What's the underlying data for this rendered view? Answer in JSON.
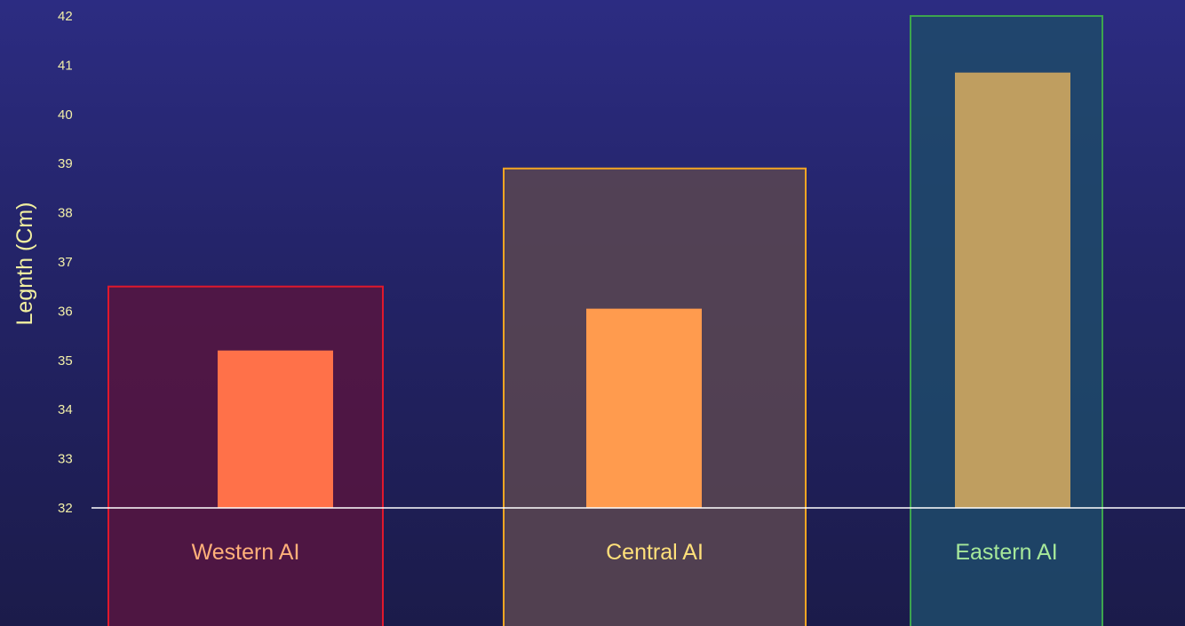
{
  "chart_data": {
    "type": "bar",
    "ylabel": "Legnth (Cm)",
    "ylim": [
      32,
      42
    ],
    "yticks": [
      32,
      33,
      34,
      35,
      36,
      37,
      38,
      39,
      40,
      41,
      42
    ],
    "categories": [
      "Western AI",
      "Central AI",
      "Eastern AI"
    ],
    "values": [
      35.2,
      36.05,
      40.85
    ],
    "range_box_tops": [
      36.5,
      38.9,
      42
    ],
    "colors": {
      "bars": [
        "#ff7149",
        "#ff9b4e",
        "#bf9e60"
      ],
      "box_fills": [
        "#571541",
        "#5b4651",
        "#1e4a6a"
      ],
      "box_borders": [
        "#e0182c",
        "#f5a623",
        "#3da54e"
      ],
      "labels": [
        "#ffb07a",
        "#ffe07a",
        "#a6e89a"
      ],
      "axis_line": "#ffffff"
    },
    "grid": false,
    "legend": "none"
  }
}
